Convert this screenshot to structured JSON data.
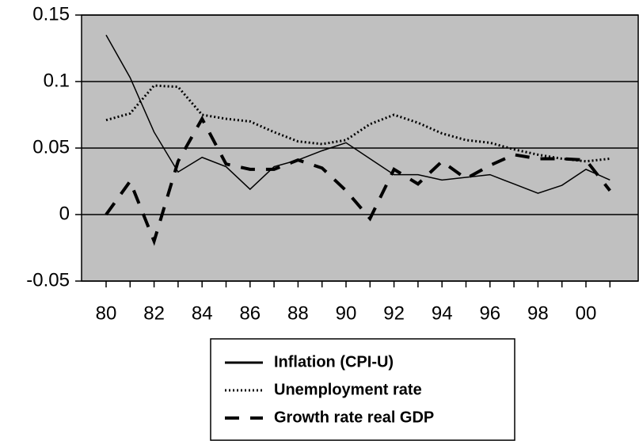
{
  "chart_data": {
    "type": "line",
    "categories": [
      "80",
      null,
      "82",
      null,
      "84",
      null,
      "86",
      null,
      "88",
      null,
      "90",
      null,
      "92",
      null,
      "94",
      null,
      "96",
      null,
      "98",
      null,
      "00",
      null
    ],
    "series": [
      {
        "name": "Inflation (CPI-U)",
        "color": "#000000",
        "style": "solid",
        "values": [
          0.135,
          0.103,
          0.062,
          0.032,
          0.043,
          0.036,
          0.019,
          0.036,
          0.041,
          0.048,
          0.054,
          0.042,
          0.03,
          0.03,
          0.026,
          0.028,
          0.03,
          0.023,
          0.016,
          0.022,
          0.034,
          0.026
        ]
      },
      {
        "name": "Unemployment rate",
        "color": "#000000",
        "style": "dotted",
        "values": [
          0.071,
          0.076,
          0.097,
          0.096,
          0.075,
          0.072,
          0.07,
          0.062,
          0.055,
          0.053,
          0.056,
          0.068,
          0.075,
          0.069,
          0.061,
          0.056,
          0.054,
          0.049,
          0.045,
          0.042,
          0.04,
          0.042
        ]
      },
      {
        "name": "Growth rate real GDP",
        "color": "#000000",
        "style": "dashed",
        "values": [
          0.0,
          0.025,
          -0.02,
          0.04,
          0.072,
          0.038,
          0.034,
          0.034,
          0.041,
          0.035,
          0.018,
          -0.003,
          0.034,
          0.023,
          0.04,
          0.027,
          0.037,
          0.045,
          0.042,
          0.042,
          0.041,
          0.018
        ]
      }
    ],
    "ylim": [
      -0.05,
      0.15
    ],
    "yticks": [
      -0.05,
      0,
      0.05,
      0.1,
      0.15
    ],
    "grid": true,
    "background": "#c0c0c0",
    "legend": "bottom"
  }
}
